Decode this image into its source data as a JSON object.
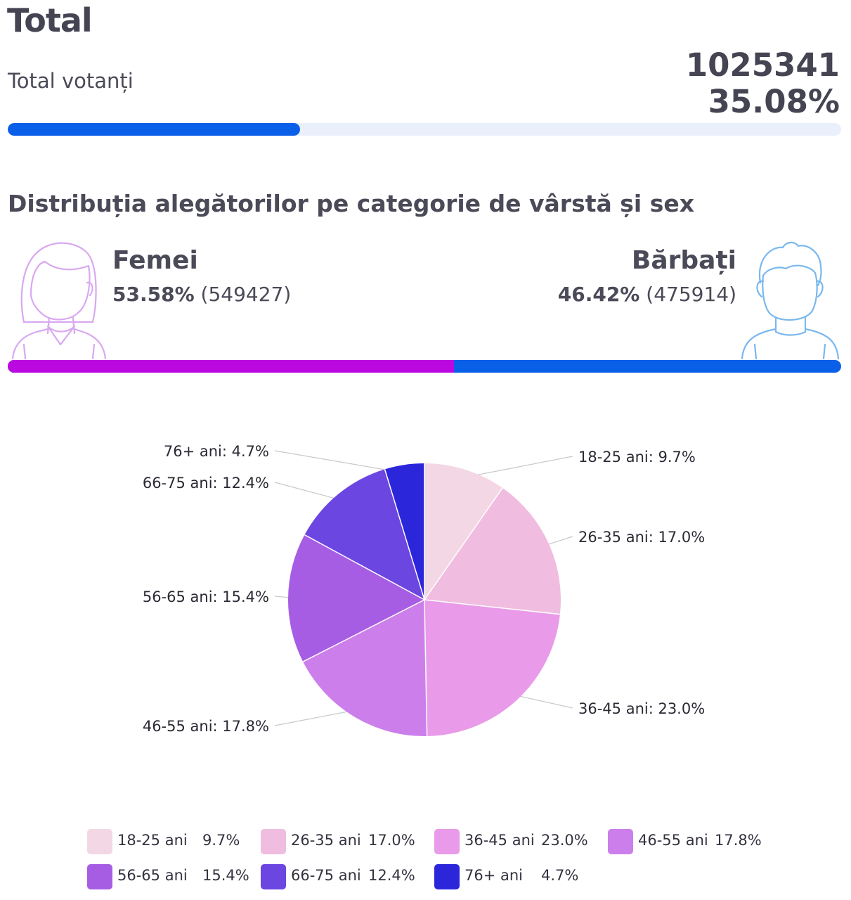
{
  "header": {
    "title": "Total"
  },
  "turnout": {
    "label": "Total votanți",
    "count": "1025341",
    "percent": "35.08%",
    "progress_fraction": 0.3508,
    "bar_color": "#0a5fe8",
    "track_color": "#e9f0fb"
  },
  "distribution": {
    "title": "Distribuția alegătorilor pe categorie de vârstă și sex",
    "women": {
      "label": "Femei",
      "percent": "53.58%",
      "count": "(549427)",
      "fraction": 0.5358,
      "color": "#bb08e0",
      "icon": "woman-icon"
    },
    "men": {
      "label": "Bărbați",
      "percent": "46.42%",
      "count": "(475914)",
      "fraction": 0.4642,
      "color": "#0a5fe8",
      "icon": "man-icon"
    }
  },
  "chart_data": {
    "type": "pie",
    "categories": [
      "18-25 ani",
      "26-35 ani",
      "36-45 ani",
      "46-55 ani",
      "56-65 ani",
      "66-75 ani",
      "76+ ani"
    ],
    "values": [
      9.7,
      17.0,
      23.0,
      17.8,
      15.4,
      12.4,
      4.7
    ],
    "slice_labels": [
      "18-25 ani: 9.7%",
      "26-35 ani: 17.0%",
      "36-45 ani: 23.0%",
      "46-55 ani: 17.8%",
      "56-65 ani: 15.4%",
      "66-75 ani: 12.4%",
      "76+ ani: 4.7%"
    ],
    "legend_values": [
      "9.7%",
      "17.0%",
      "23.0%",
      "17.8%",
      "15.4%",
      "12.4%",
      "4.7%"
    ],
    "colors": [
      "#f4d7e4",
      "#f0bde0",
      "#e99ae8",
      "#cc7fea",
      "#a65de4",
      "#6c46e0",
      "#2c26db"
    ],
    "legend_position": "bottom"
  }
}
